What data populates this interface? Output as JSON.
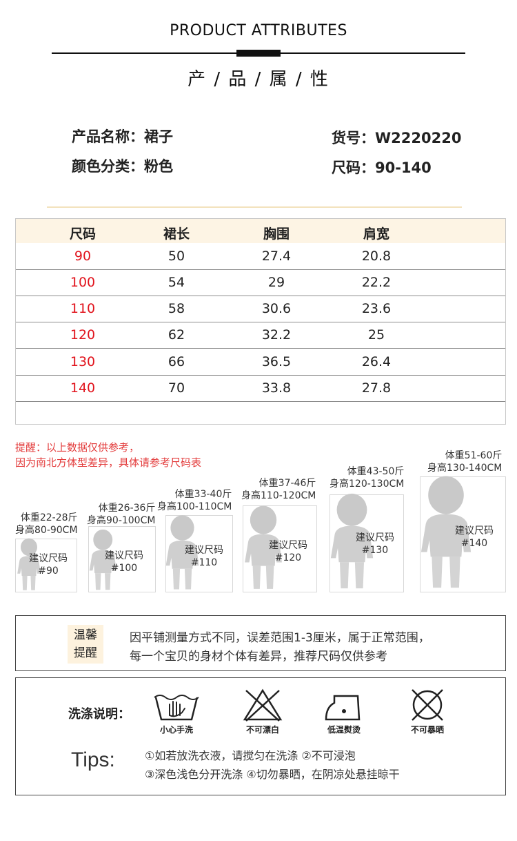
{
  "header": {
    "title_en": "PRODUCT ATTRIBUTES",
    "title_cn": "产 / 品 / 属 / 性"
  },
  "attributes": {
    "name_label": "产品名称：",
    "name_value": "裙子",
    "color_label": "颜色分类：",
    "color_value": "粉色",
    "sku_label": "货号：",
    "sku_value": "W2220220",
    "size_label": "尺码：",
    "size_value": "90-140"
  },
  "size_table": {
    "headers": [
      "尺码",
      "裙长",
      "胸围",
      "肩宽"
    ],
    "rows": [
      [
        "90",
        "50",
        "27.4",
        "20.8"
      ],
      [
        "100",
        "54",
        "29",
        "22.2"
      ],
      [
        "110",
        "58",
        "30.6",
        "23.6"
      ],
      [
        "120",
        "62",
        "32.2",
        "25"
      ],
      [
        "130",
        "66",
        "36.5",
        "26.4"
      ],
      [
        "140",
        "70",
        "33.8",
        "27.8"
      ]
    ]
  },
  "notice": {
    "line1": "提醒：以上数据仅供参考，",
    "line2": "因为南北方体型差异，具体请参考尺码表"
  },
  "kids": [
    {
      "weight": "体重22-28斤",
      "height": "身高80-90CM",
      "suggest": "建议尺码",
      "size": "#90"
    },
    {
      "weight": "体重26-36斤",
      "height": "身高90-100CM",
      "suggest": "建议尺码",
      "size": "#100"
    },
    {
      "weight": "体重33-40斤",
      "height": "身高100-110CM",
      "suggest": "建议尺码",
      "size": "#110"
    },
    {
      "weight": "体重37-46斤",
      "height": "身高110-120CM",
      "suggest": "建议尺码",
      "size": "#120"
    },
    {
      "weight": "体重43-50斤",
      "height": "身高120-130CM",
      "suggest": "建议尺码",
      "size": "#130"
    },
    {
      "weight": "体重51-60斤",
      "height": "身高130-140CM",
      "suggest": "建议尺码",
      "size": "#140"
    }
  ],
  "warm_tip": {
    "badge_line1": "温馨",
    "badge_line2": "提醒",
    "text1": "因平铺测量方式不同，误差范围1-3厘米，属于正常范围，",
    "text2": "每一个宝贝的身材个体有差异，推荐尺码仅供参考"
  },
  "wash": {
    "title": "洗涤说明：",
    "icons": [
      {
        "icon": "hand-wash-icon",
        "label": "小心手洗"
      },
      {
        "icon": "no-bleach-icon",
        "label": "不可漂白"
      },
      {
        "icon": "low-iron-icon",
        "label": "低温熨烫"
      },
      {
        "icon": "no-tumble-dry-icon",
        "label": "不可暴晒"
      }
    ],
    "tips_label": "Tips:",
    "tips_line1": "①如若放洗衣液，请搅匀在洗涤 ②不可浸泡",
    "tips_line2": "③深色浅色分开洗涤 ④切勿暴晒，在阴凉处悬挂晾干"
  }
}
